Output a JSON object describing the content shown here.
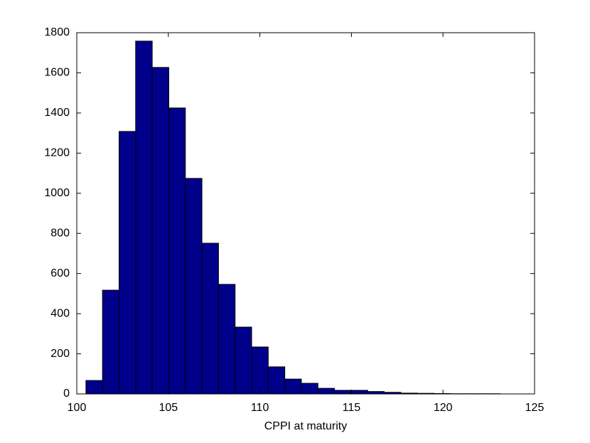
{
  "chart_data": {
    "type": "histogram",
    "x_label": "CPPI at maturity",
    "bins": [
      100.5,
      101.405,
      102.31,
      103.215,
      104.12,
      105.025,
      105.93,
      106.835,
      107.74,
      108.645,
      109.55,
      110.455,
      111.36,
      112.265,
      113.17,
      114.075,
      114.98,
      115.885,
      116.79,
      117.695,
      118.6,
      119.505,
      120.41,
      121.315,
      122.22,
      123.125
    ],
    "counts": [
      67,
      517,
      1308,
      1758,
      1627,
      1425,
      1074,
      751,
      546,
      333,
      234,
      135,
      74,
      53,
      28,
      18,
      18,
      12,
      8,
      4,
      3,
      2,
      1,
      1,
      1
    ],
    "color": "#00008b",
    "xlim": [
      100,
      125
    ],
    "xticks": [
      100,
      105,
      110,
      115,
      120,
      125
    ],
    "ylim": [
      0,
      1800
    ],
    "yticks": [
      0,
      200,
      400,
      600,
      800,
      1000,
      1200,
      1400,
      1600,
      1800
    ]
  }
}
